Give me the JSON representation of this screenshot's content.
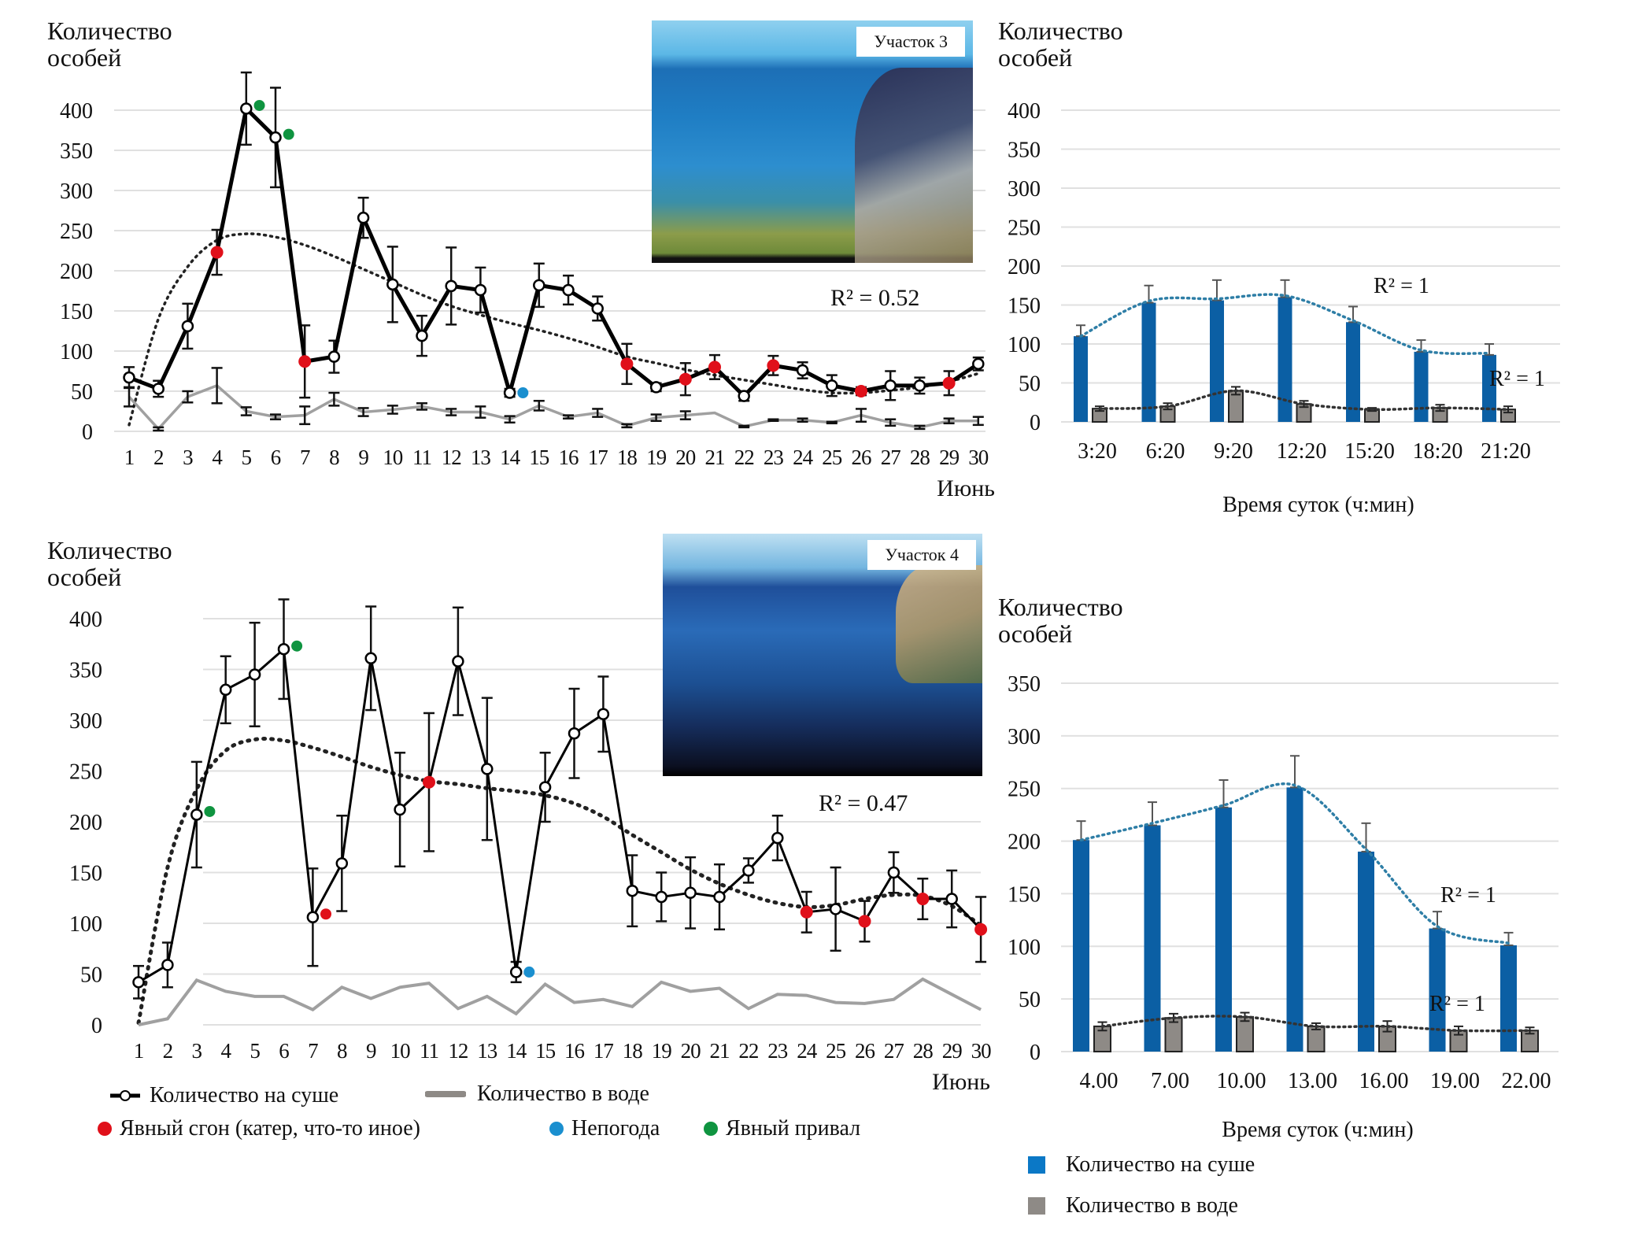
{
  "legend": {
    "land_line": "Количество на суше",
    "water_line": "Количество в воде",
    "red": "Явный сгон (катер, что-то иное)",
    "blue": "Непогода",
    "green": "Явный привал",
    "bar_land": "Количество на суше",
    "bar_water": "Количество в воде"
  },
  "colors": {
    "land_line": "#000000",
    "water_line": "#a0a0a0",
    "red": "#e0101a",
    "blue": "#1a8fcf",
    "green": "#0f9440",
    "bar_land": "#0b5fa4",
    "bar_water": "#8e8a86",
    "trend_land_bar": "#2e7ea6",
    "grid": "#e0e0e0"
  },
  "photos": [
    {
      "label": "Участок 3"
    },
    {
      "label": "Участок 4"
    }
  ],
  "chart_data": [
    {
      "id": "site3-june",
      "type": "line",
      "ylabel": "Количество особей",
      "xlabel": "Июнь",
      "ylim": [
        0,
        400
      ],
      "yticks": [
        0,
        50,
        100,
        150,
        200,
        250,
        300,
        350,
        400
      ],
      "x": [
        1,
        2,
        3,
        4,
        5,
        6,
        7,
        8,
        9,
        10,
        11,
        12,
        13,
        14,
        15,
        16,
        17,
        18,
        19,
        20,
        21,
        22,
        23,
        24,
        25,
        26,
        27,
        28,
        29,
        30
      ],
      "series": [
        {
          "name": "Количество на суше",
          "values": [
            67,
            53,
            131,
            223,
            402,
            366,
            87,
            93,
            266,
            183,
            119,
            181,
            176,
            48,
            182,
            176,
            153,
            84,
            55,
            65,
            80,
            44,
            82,
            76,
            57,
            50,
            57,
            57,
            60,
            84
          ],
          "err": [
            13,
            10,
            28,
            28,
            45,
            62,
            45,
            20,
            25,
            47,
            25,
            48,
            28,
            5,
            27,
            18,
            15,
            25,
            5,
            20,
            15,
            6,
            12,
            10,
            13,
            5,
            18,
            10,
            15,
            8
          ]
        },
        {
          "name": "Количество в воде",
          "values": [
            43,
            3,
            43,
            57,
            25,
            18,
            20,
            40,
            24,
            27,
            31,
            24,
            24,
            15,
            32,
            18,
            23,
            7,
            17,
            20,
            23,
            6,
            14,
            14,
            11,
            20,
            11,
            5,
            13,
            13
          ],
          "err": [
            12,
            2,
            7,
            22,
            5,
            3,
            11,
            8,
            5,
            5,
            4,
            4,
            7,
            4,
            6,
            2,
            5,
            2,
            4,
            5,
            0,
            1,
            1,
            2,
            1,
            8,
            4,
            2,
            3,
            5
          ]
        }
      ],
      "markers": {
        "red": [
          4,
          7,
          18,
          20,
          21,
          23,
          26,
          29
        ],
        "blue_offset_near": [
          14
        ],
        "green_offset_near": [
          5,
          6
        ]
      },
      "trend": {
        "label": "R² = 0.52",
        "values": [
          8,
          140,
          205,
          238,
          246,
          242,
          232,
          218,
          202,
          186,
          170,
          156,
          145,
          135,
          126,
          116,
          105,
          93,
          85,
          77,
          70,
          64,
          58,
          52,
          48,
          48,
          51,
          55,
          62,
          72
        ]
      }
    },
    {
      "id": "site3-daytime",
      "type": "bar",
      "ylabel": "Количество особей",
      "xlabel": "Время суток (ч:мин)",
      "ylim": [
        0,
        400
      ],
      "yticks": [
        0,
        50,
        100,
        150,
        200,
        250,
        300,
        350,
        400
      ],
      "categories": [
        "3:20",
        "6:20",
        "9:20",
        "12:20",
        "15:20",
        "18:20",
        "21:20"
      ],
      "series": [
        {
          "name": "Количество на суше",
          "values": [
            110,
            153,
            156,
            160,
            128,
            90,
            86
          ],
          "err": [
            14,
            22,
            26,
            22,
            20,
            15,
            14
          ]
        },
        {
          "name": "Количество в воде",
          "values": [
            17,
            20,
            40,
            23,
            16,
            18,
            16
          ],
          "err": [
            3,
            4,
            5,
            4,
            2,
            4,
            4
          ]
        }
      ],
      "trend_labels": [
        "R² = 1",
        "R² = 1"
      ]
    },
    {
      "id": "site4-june",
      "type": "line",
      "ylabel": "Количество особей",
      "xlabel": "Июнь",
      "ylim": [
        0,
        400
      ],
      "yticks": [
        0,
        50,
        100,
        150,
        200,
        250,
        300,
        350,
        400
      ],
      "x": [
        1,
        2,
        3,
        4,
        5,
        6,
        7,
        8,
        9,
        10,
        11,
        12,
        13,
        14,
        15,
        16,
        17,
        18,
        19,
        20,
        21,
        22,
        23,
        24,
        25,
        26,
        27,
        28,
        29,
        30
      ],
      "series": [
        {
          "name": "Количество на суше",
          "values": [
            42,
            59,
            207,
            330,
            345,
            370,
            106,
            159,
            361,
            212,
            239,
            358,
            252,
            52,
            234,
            287,
            306,
            132,
            126,
            130,
            126,
            152,
            184,
            111,
            114,
            102,
            150,
            124,
            124,
            94
          ],
          "err": [
            16,
            22,
            52,
            33,
            51,
            49,
            48,
            47,
            51,
            56,
            68,
            53,
            70,
            10,
            34,
            44,
            37,
            35,
            24,
            35,
            32,
            12,
            22,
            20,
            41,
            20,
            20,
            20,
            28,
            32
          ]
        },
        {
          "name": "Количество в воде",
          "values": [
            0,
            6,
            44,
            33,
            28,
            28,
            15,
            37,
            26,
            37,
            41,
            16,
            28,
            11,
            40,
            22,
            25,
            18,
            42,
            33,
            36,
            16,
            30,
            29,
            22,
            21,
            25,
            45,
            30,
            15
          ],
          "err": []
        }
      ],
      "markers": {
        "red": [
          11,
          24,
          26,
          28,
          30
        ],
        "red_offset_near": [
          7
        ],
        "blue_offset_near": [
          14
        ],
        "green_offset_near": [
          3,
          6
        ]
      },
      "trend": {
        "label": "R² = 0.47",
        "values": [
          2,
          155,
          232,
          270,
          281,
          280,
          273,
          264,
          254,
          246,
          240,
          237,
          233,
          230,
          226,
          218,
          205,
          187,
          170,
          153,
          139,
          128,
          120,
          116,
          118,
          124,
          128,
          127,
          117,
          98
        ]
      }
    },
    {
      "id": "site4-daytime",
      "type": "bar",
      "ylabel": "Количество особей",
      "xlabel": "Время суток (ч:мин)",
      "ylim": [
        0,
        350
      ],
      "yticks": [
        0,
        50,
        100,
        150,
        200,
        250,
        300,
        350
      ],
      "categories": [
        "4.00",
        "7.00",
        "10.00",
        "13.00",
        "16.00",
        "19.00",
        "22.00"
      ],
      "series": [
        {
          "name": "Количество на суше",
          "values": [
            201,
            215,
            232,
            251,
            190,
            117,
            101
          ],
          "err": [
            18,
            22,
            26,
            30,
            27,
            16,
            12
          ]
        },
        {
          "name": "Количество в воде",
          "values": [
            24,
            32,
            33,
            24,
            24,
            20,
            20
          ],
          "err": [
            4,
            4,
            4,
            3,
            5,
            4,
            3
          ]
        }
      ],
      "trend_labels": [
        "R² = 1",
        "R² = 1"
      ]
    }
  ]
}
